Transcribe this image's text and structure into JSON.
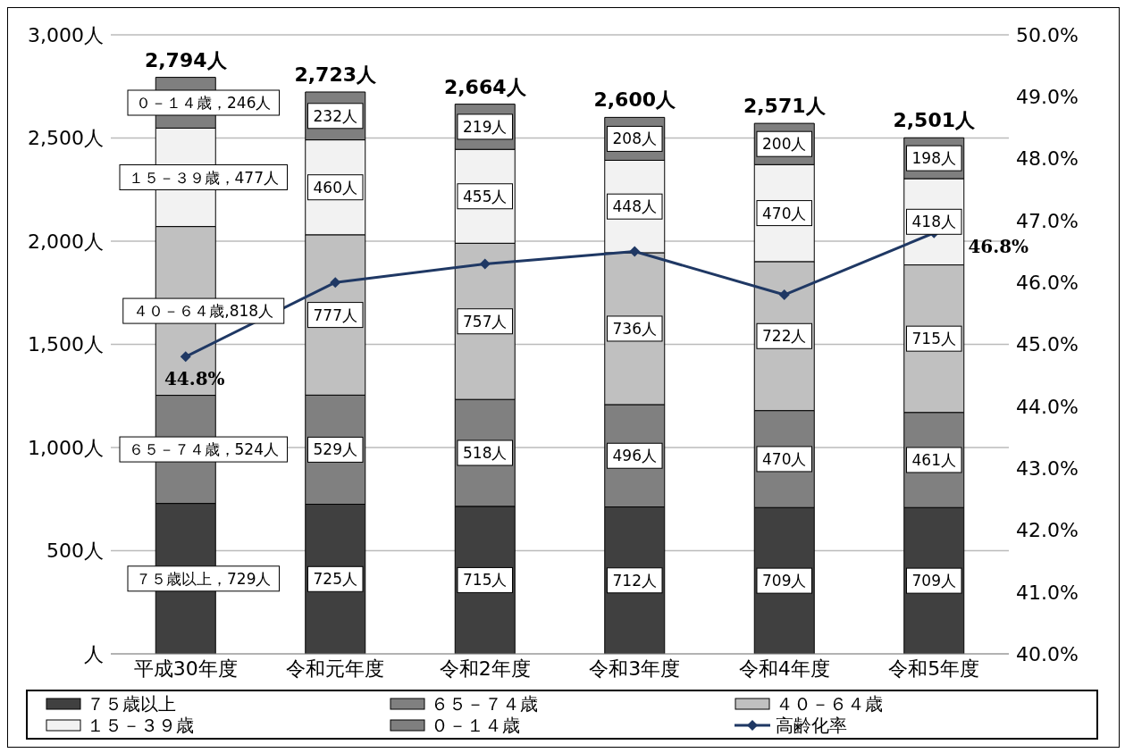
{
  "chart_data": {
    "type": "bar",
    "stacked": true,
    "categories": [
      "平成30年度",
      "令和元年度",
      "令和2年度",
      "令和3年度",
      "令和4年度",
      "令和5年度"
    ],
    "series": [
      {
        "name": "７５歳以上",
        "color": "#404040",
        "values": [
          729,
          725,
          715,
          712,
          709,
          709
        ],
        "value_labels": [
          "７５歳以上，729人",
          "725人",
          "715人",
          "712人",
          "709人",
          "709人"
        ]
      },
      {
        "name": "６５－７４歳",
        "color": "#808080",
        "values": [
          524,
          529,
          518,
          496,
          470,
          461
        ],
        "value_labels": [
          "６５－７４歳，524人",
          "529人",
          "518人",
          "496人",
          "470人",
          "461人"
        ]
      },
      {
        "name": "４０－６４歳",
        "color": "#c0c0c0",
        "values": [
          818,
          777,
          757,
          736,
          722,
          715
        ],
        "value_labels": [
          "４０－６４歳,818人",
          "777人",
          "757人",
          "736人",
          "722人",
          "715人"
        ]
      },
      {
        "name": "１５－３９歳",
        "color": "#f2f2f2",
        "values": [
          477,
          460,
          455,
          448,
          470,
          418
        ],
        "value_labels": [
          "１５－３９歳，477人",
          "460人",
          "455人",
          "448人",
          "470人",
          "418人"
        ]
      },
      {
        "name": "０－１４歳",
        "color": "#7f7f7f",
        "values": [
          246,
          232,
          219,
          208,
          200,
          198
        ],
        "value_labels": [
          "０－１４歳，246人",
          "232人",
          "219人",
          "208人",
          "200人",
          "198人"
        ]
      },
      {
        "name": "高齢化率",
        "type": "line",
        "axis": "y2",
        "color": "#1f3864",
        "marker": "diamond",
        "values": [
          44.8,
          46.0,
          46.3,
          46.5,
          45.8,
          46.8
        ],
        "value_labels": [
          "44.8%",
          null,
          null,
          null,
          null,
          "46.8%"
        ]
      }
    ],
    "totals": [
      "2,794人",
      "2,723人",
      "2,664人",
      "2,600人",
      "2,571人",
      "2,501人"
    ],
    "ylim": [
      0,
      3000
    ],
    "yticks": [
      {
        "value": 0,
        "label": "人"
      },
      {
        "value": 500,
        "label": "500人"
      },
      {
        "value": 1000,
        "label": "1,000人"
      },
      {
        "value": 1500,
        "label": "1,500人"
      },
      {
        "value": 2000,
        "label": "2,000人"
      },
      {
        "value": 2500,
        "label": "2,500人"
      },
      {
        "value": 3000,
        "label": "3,000人"
      }
    ],
    "y2lim": [
      40,
      50
    ],
    "y2ticks": [
      {
        "value": 40,
        "label": "40.0%"
      },
      {
        "value": 41,
        "label": "41.0%"
      },
      {
        "value": 42,
        "label": "42.0%"
      },
      {
        "value": 43,
        "label": "43.0%"
      },
      {
        "value": 44,
        "label": "44.0%"
      },
      {
        "value": 45,
        "label": "45.0%"
      },
      {
        "value": 46,
        "label": "46.0%"
      },
      {
        "value": 47,
        "label": "47.0%"
      },
      {
        "value": 48,
        "label": "48.0%"
      },
      {
        "value": 49,
        "label": "49.0%"
      },
      {
        "value": 50,
        "label": "50.0%"
      }
    ],
    "grid": "y",
    "legend": "bottom"
  }
}
